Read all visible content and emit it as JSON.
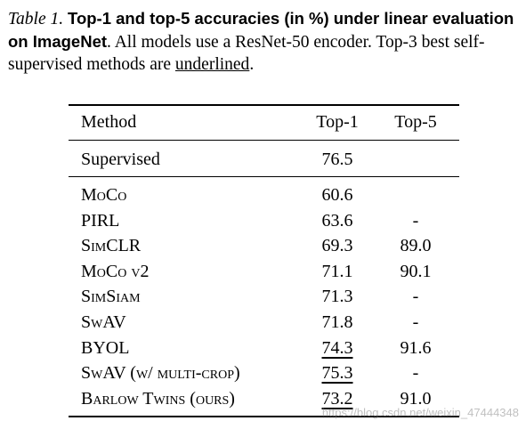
{
  "caption": {
    "label": "Table 1.",
    "bold": "Top-1 and top-5 accuracies (in %) under linear evaluation on ImageNet",
    "text_before": ". All models use a ResNet-50 encoder. Top-3 best self-supervised methods are ",
    "underlined_word": "underlined",
    "end": "."
  },
  "table": {
    "headers": [
      "Method",
      "Top-1",
      "Top-5"
    ],
    "supervised": {
      "method": "Supervised",
      "top1": "76.5",
      "top5": ""
    },
    "rows": [
      {
        "method": "MoCo",
        "top1": "60.6",
        "top5": ""
      },
      {
        "method": "PIRL",
        "top1": "63.6",
        "top5": "-"
      },
      {
        "method": "SimCLR",
        "top1": "69.3",
        "top5": "89.0"
      },
      {
        "method": "MoCo v2",
        "top1": "71.1",
        "top5": "90.1"
      },
      {
        "method": "SimSiam",
        "top1": "71.3",
        "top5": "-"
      },
      {
        "method": "SwAV",
        "top1": "71.8",
        "top5": "-"
      },
      {
        "method": "BYOL",
        "top1": "74.3",
        "top5": "91.6",
        "top1_underlined": true
      },
      {
        "method": "SwAV (w/ multi-crop)",
        "top1": "75.3",
        "top5": "-",
        "top1_underlined": true
      },
      {
        "method": "Barlow Twins (ours)",
        "top1": "73.2",
        "top5": "91.0",
        "top1_underlined": true
      }
    ]
  },
  "watermark": "https://blog.csdn.net/weixin_47444348"
}
